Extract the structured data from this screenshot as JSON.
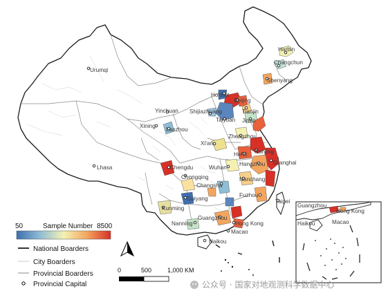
{
  "legend": {
    "colorbar_title": "Sample Number",
    "colorbar_min": "50",
    "colorbar_max": "8500",
    "ramp_colors": [
      "#3f6fb0",
      "#8fbdd6",
      "#f4f1b3",
      "#f3a55e",
      "#d73027"
    ],
    "items": [
      {
        "label": "National Boarders",
        "style": "national"
      },
      {
        "label": "City Boarders",
        "style": "city"
      },
      {
        "label": "Provincial Boarders",
        "style": "provincial"
      },
      {
        "label": "Provincial Capital",
        "style": "capital"
      }
    ]
  },
  "scale_bar": {
    "labels": [
      "0",
      "500",
      "1,000 KM"
    ]
  },
  "north_arrow": {
    "icon": "north-arrow-icon"
  },
  "watermark": {
    "text": "公众号 · 国家对地观测科学数据中心",
    "icon": "wechat-icon"
  },
  "cities": [
    {
      "name": "Harbin"
    },
    {
      "name": "Changchun"
    },
    {
      "name": "Shenyang"
    },
    {
      "name": "Urumqi"
    },
    {
      "name": "Hohhot"
    },
    {
      "name": "Beijing"
    },
    {
      "name": "Tianjin"
    },
    {
      "name": "Yinchuan"
    },
    {
      "name": "Shijiazhuang"
    },
    {
      "name": "Jinan"
    },
    {
      "name": "Taiyuan"
    },
    {
      "name": "Xining"
    },
    {
      "name": "Lanzhou"
    },
    {
      "name": "Zhengzhou"
    },
    {
      "name": "Xi'an"
    },
    {
      "name": "Nanjing"
    },
    {
      "name": "Hefei"
    },
    {
      "name": "Shanghai"
    },
    {
      "name": "Hangzhou"
    },
    {
      "name": "Lhasa"
    },
    {
      "name": "Chengdu"
    },
    {
      "name": "Wuhan"
    },
    {
      "name": "Chongqing"
    },
    {
      "name": "Nanchang"
    },
    {
      "name": "Changsha"
    },
    {
      "name": "Guiyang"
    },
    {
      "name": "Fuzhou"
    },
    {
      "name": "Taipei"
    },
    {
      "name": "Kunming"
    },
    {
      "name": "Guangzhou"
    },
    {
      "name": "Nanning"
    },
    {
      "name": "Hong Kong"
    },
    {
      "name": "Macao"
    },
    {
      "name": "Haikou"
    }
  ],
  "inset": {
    "labels": [
      {
        "name": "Guangzhou"
      },
      {
        "name": "Hong Kong"
      },
      {
        "name": "Haikou"
      },
      {
        "name": "Macao"
      }
    ]
  }
}
